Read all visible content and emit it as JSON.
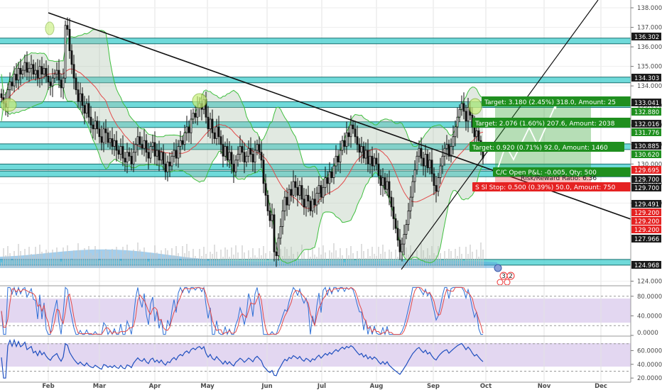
{
  "chart_data": {
    "type": "candlestick",
    "symbol_note": "USDJPY-style daily chart with Bollinger Bands, trendlines, horizontal zones, stochastic and RSI panes",
    "x": {
      "tick_labels": [
        "Feb",
        "Mar",
        "Apr",
        "May",
        "Jun",
        "Jul",
        "Aug",
        "Sep",
        "Oct",
        "Nov",
        "Dec"
      ]
    },
    "price_axis": {
      "ylim": [
        123.8,
        138.4
      ],
      "tick_labels": [
        "138.000",
        "137.000",
        "136.000",
        "135.000",
        "134.000",
        "133.000",
        "132.000",
        "131.000",
        "130.000",
        "129.000",
        "128.000",
        "124.000"
      ]
    },
    "price_tags": [
      {
        "value": "136.302",
        "style": "dark"
      },
      {
        "value": "134.303",
        "style": "dark"
      },
      {
        "value": "133.041",
        "style": "dark"
      },
      {
        "value": "132.880",
        "style": "green"
      },
      {
        "value": "132.016",
        "style": "dark"
      },
      {
        "value": "131.776",
        "style": "green"
      },
      {
        "value": "130.885",
        "style": "dark"
      },
      {
        "value": "130.620",
        "style": "green"
      },
      {
        "value": "129.695",
        "style": "red"
      },
      {
        "value": "129.700",
        "style": "dark"
      },
      {
        "value": "129.700",
        "style": "dark"
      },
      {
        "value": "129.491",
        "style": "dark"
      },
      {
        "value": "129.200",
        "style": "red"
      },
      {
        "value": "129.200",
        "style": "red"
      },
      {
        "value": "129.200",
        "style": "red"
      },
      {
        "value": "127.966",
        "style": "dark"
      },
      {
        "value": "124.968",
        "style": "dark"
      }
    ],
    "horizontal_zones": [
      136.302,
      134.303,
      133.041,
      132.016,
      130.885,
      129.85,
      129.491,
      124.968
    ],
    "trade_boxes": [
      {
        "text": "Target: 3.180 (2.45%) 318.0, Amount: 25",
        "color": "#1f8f1f"
      },
      {
        "text": "Target: 2.076 (1.60%) 207.6, Amount: 2038",
        "color": "#1f8f1f"
      },
      {
        "text": "Target: 0.920 (0.71%) 92.0, Amount: 1460",
        "color": "#1f8f1f"
      },
      {
        "text": "C/C Open P&L: -0.005, Qty: 500",
        "color": "#1f8f1f"
      },
      {
        "text": "Risk/Reward Ratio: 6.36",
        "color": "#e52222"
      },
      {
        "text": "S Sl Stop: 0.500 (0.39%) 50.0, Amount: 750",
        "color": "#e52222"
      }
    ],
    "stoch_axis": {
      "ylim": [
        0,
        100
      ],
      "tick_labels": [
        "80.0000",
        "40.0000",
        "0.0000"
      ]
    },
    "rsi_axis": {
      "ylim": [
        15,
        80
      ],
      "tick_labels": [
        "60.0000",
        "40.0000",
        "20.0000"
      ]
    },
    "closes": [
      133.4,
      133.1,
      132.9,
      133.8,
      134.2,
      134.0,
      134.6,
      134.3,
      134.9,
      134.6,
      134.8,
      135.2,
      134.7,
      134.9,
      135.1,
      134.6,
      134.8,
      134.4,
      135.0,
      134.6,
      134.9,
      134.5,
      134.2,
      134.0,
      134.4,
      134.6,
      134.8,
      134.3,
      133.9,
      134.4,
      137.1,
      136.9,
      135.8,
      135.1,
      134.4,
      133.8,
      133.2,
      133.6,
      133.0,
      132.6,
      133.1,
      132.4,
      132.0,
      131.8,
      132.2,
      131.8,
      131.4,
      131.1,
      131.8,
      131.6,
      131.1,
      131.3,
      130.9,
      131.2,
      130.7,
      130.5,
      130.9,
      130.3,
      130.1,
      130.6,
      130.4,
      130.0,
      130.6,
      131.0,
      131.4,
      131.0,
      130.8,
      131.2,
      130.6,
      130.3,
      130.9,
      131.1,
      130.4,
      130.7,
      130.2,
      130.6,
      130.0,
      129.6,
      130.1,
      129.9,
      130.4,
      130.7,
      130.3,
      130.9,
      131.2,
      131.0,
      131.6,
      131.9,
      131.6,
      132.3,
      132.6,
      132.4,
      132.9,
      133.1,
      132.8,
      133.3,
      132.4,
      131.8,
      132.3,
      131.6,
      131.3,
      131.9,
      131.4,
      131.0,
      130.4,
      130.9,
      130.2,
      130.6,
      130.0,
      129.6,
      130.2,
      130.5,
      130.9,
      130.6,
      130.1,
      130.4,
      130.8,
      130.5,
      130.1,
      130.7,
      131.0,
      130.6,
      130.2,
      129.0,
      128.4,
      127.6,
      127.1,
      127.4,
      125.5,
      125.3,
      126.2,
      126.8,
      127.6,
      128.3,
      127.9,
      128.7,
      128.4,
      129.1,
      128.8,
      128.4,
      128.9,
      128.2,
      127.8,
      128.4,
      128.1,
      127.6,
      128.2,
      127.9,
      128.5,
      128.9,
      128.3,
      128.8,
      129.3,
      129.0,
      129.6,
      129.3,
      129.9,
      130.4,
      130.1,
      130.7,
      131.2,
      130.9,
      131.6,
      131.4,
      132.0,
      131.8,
      131.4,
      131.0,
      130.6,
      130.9,
      130.3,
      130.7,
      130.0,
      130.4,
      129.9,
      130.3,
      130.0,
      129.4,
      128.9,
      129.3,
      128.7,
      129.1,
      128.3,
      127.8,
      127.2,
      126.7,
      126.1,
      125.5,
      125.9,
      126.4,
      126.9,
      127.6,
      128.3,
      129.1,
      129.7,
      130.4,
      130.8,
      130.3,
      129.9,
      130.5,
      129.8,
      130.2,
      129.5,
      128.9,
      128.6,
      129.3,
      129.9,
      130.4,
      130.8,
      131.0,
      130.4,
      130.9,
      131.4,
      131.9,
      132.4,
      132.8,
      133.1,
      132.7,
      132.2,
      132.9,
      132.5,
      131.9,
      131.4,
      131.7,
      131.2,
      130.7,
      130.3
    ]
  }
}
